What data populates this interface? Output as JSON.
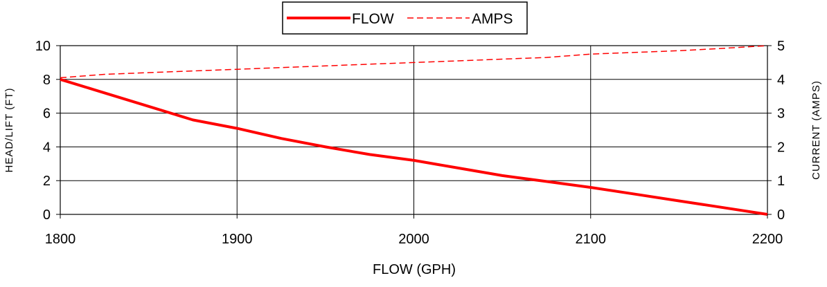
{
  "chart_data": {
    "type": "line",
    "x": [
      1800,
      1825,
      1850,
      1875,
      1900,
      1925,
      1950,
      1975,
      2000,
      2025,
      2050,
      2075,
      2100,
      2125,
      2150,
      2175,
      2200
    ],
    "series": [
      {
        "name": "FLOW",
        "axis": "left",
        "style": "solid",
        "color": "#ff0000",
        "values": [
          8.0,
          7.2,
          6.4,
          5.6,
          5.1,
          4.5,
          4.0,
          3.55,
          3.2,
          2.75,
          2.3,
          1.95,
          1.6,
          1.2,
          0.8,
          0.4,
          0.0
        ]
      },
      {
        "name": "AMPS",
        "axis": "right",
        "style": "dashed",
        "color": "#ff0000",
        "values": [
          4.05,
          4.15,
          4.2,
          4.25,
          4.3,
          4.35,
          4.4,
          4.45,
          4.5,
          4.55,
          4.6,
          4.65,
          4.75,
          4.8,
          4.85,
          4.92,
          5.0
        ]
      }
    ],
    "xlabel": "FLOW (GPH)",
    "ylabel": "HEAD/LIFT (FT)",
    "y2label": "CURRENT (AMPS)",
    "xlim": [
      1800,
      2200
    ],
    "ylim": [
      0,
      10
    ],
    "y2lim": [
      0,
      5
    ],
    "xticks": [
      1800,
      1900,
      2000,
      2100,
      2200
    ],
    "yticks": [
      0,
      2,
      4,
      6,
      8,
      10
    ],
    "y2ticks": [
      0,
      1,
      2,
      3,
      4,
      5
    ],
    "grid": true,
    "legend_position": "top-center"
  }
}
